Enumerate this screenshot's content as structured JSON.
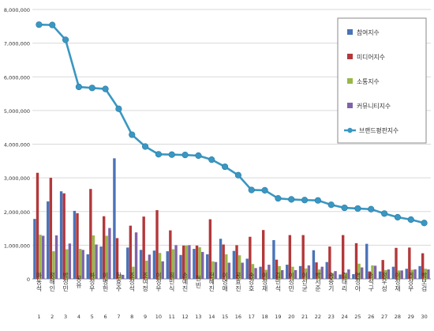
{
  "chart_data": {
    "type": "bar",
    "ylim": [
      0,
      8000000
    ],
    "y_ticks": [
      "0",
      "1,000,000",
      "2,000,000",
      "3,000,000",
      "4,000,000",
      "5,000,000",
      "6,000,000",
      "7,000,000",
      "8,000,000"
    ],
    "categories": [
      "마동석",
      "정해인",
      "박정민",
      "공유",
      "하정우",
      "이병헌",
      "한효주",
      "조정석",
      "조여정",
      "이정우",
      "최민식",
      "손예진",
      "현빈",
      "전혜진",
      "이영애",
      "공효진",
      "송강호",
      "이정재",
      "김민석",
      "이성민",
      "이선균",
      "박서준",
      "송중기",
      "김태리",
      "염정아",
      "손석구",
      "정우성",
      "이정재",
      "권상우",
      "박보검"
    ],
    "x_numbers": [
      "1",
      "2",
      "3",
      "4",
      "5",
      "6",
      "7",
      "8",
      "9",
      "10",
      "11",
      "12",
      "13",
      "14",
      "15",
      "16",
      "17",
      "18",
      "19",
      "20",
      "21",
      "22",
      "23",
      "24",
      "25",
      "26",
      "27",
      "28",
      "29",
      "30"
    ],
    "series": [
      {
        "name": "참여지수",
        "color": "#4a73b8",
        "values": [
          1780000,
          2300000,
          2600000,
          2020000,
          730000,
          960000,
          3580000,
          930000,
          860000,
          840000,
          820000,
          710000,
          890000,
          730000,
          1190000,
          830000,
          600000,
          360000,
          1150000,
          420000,
          380000,
          850000,
          500000,
          130000,
          140000,
          1040000,
          220000,
          360000,
          300000,
          380000
        ]
      },
      {
        "name": "미디어지수",
        "color": "#b3383a",
        "values": [
          3150000,
          3000000,
          2540000,
          1950000,
          2670000,
          1860000,
          1210000,
          1580000,
          1850000,
          2040000,
          1440000,
          990000,
          990000,
          1770000,
          1020000,
          1000000,
          1250000,
          1450000,
          570000,
          1300000,
          1300000,
          490000,
          960000,
          1300000,
          1060000,
          220000,
          560000,
          920000,
          930000,
          760000
        ]
      },
      {
        "name": "소통지수",
        "color": "#98b848",
        "values": [
          1310000,
          820000,
          880000,
          890000,
          1290000,
          1280000,
          130000,
          360000,
          540000,
          770000,
          880000,
          990000,
          940000,
          520000,
          730000,
          700000,
          440000,
          270000,
          380000,
          360000,
          310000,
          280000,
          180000,
          170000,
          450000,
          400000,
          260000,
          250000,
          270000,
          300000
        ]
      },
      {
        "name": "커뮤니티지수",
        "color": "#7f63a8",
        "values": [
          1280000,
          1290000,
          1050000,
          860000,
          1020000,
          1510000,
          120000,
          1380000,
          720000,
          520000,
          1000000,
          1000000,
          800000,
          500000,
          480000,
          480000,
          320000,
          420000,
          260000,
          260000,
          400000,
          360000,
          230000,
          280000,
          340000,
          390000,
          280000,
          250000,
          280000,
          280000
        ]
      }
    ],
    "line": {
      "name": "브랜드평판지수",
      "color": "#3a97c2",
      "values": [
        7550000,
        7540000,
        7100000,
        5700000,
        5670000,
        5640000,
        5050000,
        4280000,
        3930000,
        3700000,
        3690000,
        3680000,
        3660000,
        3540000,
        3330000,
        3080000,
        2640000,
        2630000,
        2390000,
        2360000,
        2340000,
        2330000,
        2200000,
        2110000,
        2090000,
        2070000,
        1940000,
        1830000,
        1760000,
        1660000
      ]
    },
    "legend_position": "top-right",
    "grid": true
  }
}
